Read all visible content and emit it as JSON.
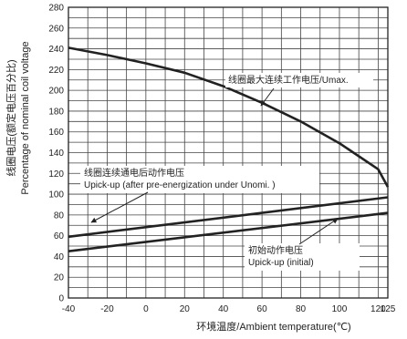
{
  "chart_data": {
    "type": "line",
    "xlabel": "环境温度/Ambient temperature(℃)",
    "ylabel_lines": [
      "线圈电压(额定电压百分比)",
      "Percentage of nominal coil voltage"
    ],
    "xlim": [
      -40,
      125
    ],
    "ylim": [
      0,
      280
    ],
    "x_ticks": [
      -40,
      -20,
      0,
      20,
      40,
      60,
      80,
      100,
      120,
      125
    ],
    "y_ticks": [
      0,
      20,
      40,
      60,
      80,
      100,
      120,
      140,
      160,
      180,
      200,
      220,
      240,
      260,
      280
    ],
    "x_minor_step": 10,
    "y_minor_step": 10,
    "grid": true,
    "series": [
      {
        "x": [
          -40,
          -20,
          0,
          20,
          40,
          60,
          80,
          100,
          120,
          125
        ],
        "values": [
          241,
          234,
          226,
          217,
          204,
          188,
          170,
          149,
          124,
          107
        ]
      },
      {
        "x": [
          -40,
          125
        ],
        "values": [
          59,
          97
        ]
      },
      {
        "x": [
          -40,
          125
        ],
        "values": [
          45,
          82
        ]
      }
    ],
    "annotations": [
      {
        "lines": [
          "线圈最大连续工作电压/Umax."
        ],
        "series_index": 0
      },
      {
        "lines": [
          "线圈连续通电后动作电压",
          "Upick-up (after pre-energization under Unomi. )"
        ],
        "series_index": 1
      },
      {
        "lines": [
          "初始动作电压",
          "Upick-up (initial)"
        ],
        "series_index": 2
      }
    ]
  }
}
